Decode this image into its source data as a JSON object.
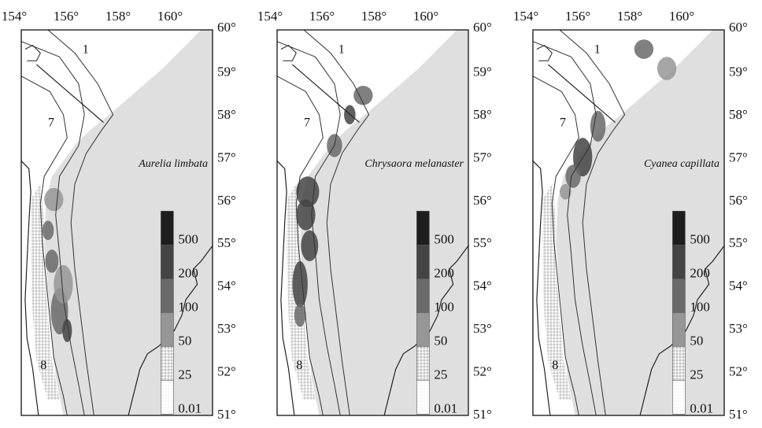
{
  "figure": {
    "x_ticks": [
      "154°",
      "156°",
      "158°",
      "160°"
    ],
    "y_ticks": [
      "60°",
      "59°",
      "58°",
      "57°",
      "56°",
      "55°",
      "54°",
      "53°",
      "52°",
      "51°"
    ],
    "zone_labels": [
      "1",
      "7",
      "8"
    ],
    "legend": {
      "labels": [
        "500",
        "200",
        "100",
        "50",
        "25",
        "0.01"
      ],
      "colors": [
        "#1e1e1e",
        "#444444",
        "#6a6a6a",
        "#969696",
        "#c4c4c4",
        "#e6e6e6"
      ]
    },
    "panels": [
      {
        "species": "Aurelia limbata",
        "patches": [
          {
            "cx": 0.17,
            "cy": 0.44,
            "rx": 0.05,
            "ry": 0.03,
            "level": 3
          },
          {
            "cx": 0.14,
            "cy": 0.52,
            "rx": 0.03,
            "ry": 0.025,
            "level": 2
          },
          {
            "cx": 0.16,
            "cy": 0.6,
            "rx": 0.035,
            "ry": 0.03,
            "level": 2
          },
          {
            "cx": 0.2,
            "cy": 0.73,
            "rx": 0.045,
            "ry": 0.06,
            "level": 2
          },
          {
            "cx": 0.24,
            "cy": 0.78,
            "rx": 0.025,
            "ry": 0.03,
            "level": 1
          },
          {
            "cx": 0.22,
            "cy": 0.66,
            "rx": 0.05,
            "ry": 0.05,
            "level": 3
          }
        ]
      },
      {
        "species": "Chrysaora melanaster",
        "patches": [
          {
            "cx": 0.45,
            "cy": 0.17,
            "rx": 0.05,
            "ry": 0.025,
            "level": 2
          },
          {
            "cx": 0.3,
            "cy": 0.3,
            "rx": 0.04,
            "ry": 0.03,
            "level": 2
          },
          {
            "cx": 0.16,
            "cy": 0.42,
            "rx": 0.06,
            "ry": 0.04,
            "level": 1
          },
          {
            "cx": 0.15,
            "cy": 0.48,
            "rx": 0.05,
            "ry": 0.04,
            "level": 1
          },
          {
            "cx": 0.17,
            "cy": 0.56,
            "rx": 0.045,
            "ry": 0.04,
            "level": 1
          },
          {
            "cx": 0.12,
            "cy": 0.66,
            "rx": 0.04,
            "ry": 0.06,
            "level": 1
          },
          {
            "cx": 0.12,
            "cy": 0.74,
            "rx": 0.03,
            "ry": 0.03,
            "level": 2
          },
          {
            "cx": 0.38,
            "cy": 0.22,
            "rx": 0.03,
            "ry": 0.025,
            "level": 1
          }
        ]
      },
      {
        "species": "Cyanea capillata",
        "patches": [
          {
            "cx": 0.58,
            "cy": 0.05,
            "rx": 0.05,
            "ry": 0.025,
            "level": 2
          },
          {
            "cx": 0.7,
            "cy": 0.1,
            "rx": 0.05,
            "ry": 0.03,
            "level": 3
          },
          {
            "cx": 0.34,
            "cy": 0.25,
            "rx": 0.04,
            "ry": 0.04,
            "level": 2
          },
          {
            "cx": 0.26,
            "cy": 0.33,
            "rx": 0.05,
            "ry": 0.05,
            "level": 1
          },
          {
            "cx": 0.21,
            "cy": 0.38,
            "rx": 0.04,
            "ry": 0.03,
            "level": 2
          },
          {
            "cx": 0.17,
            "cy": 0.42,
            "rx": 0.03,
            "ry": 0.02,
            "level": 3
          }
        ]
      }
    ]
  }
}
